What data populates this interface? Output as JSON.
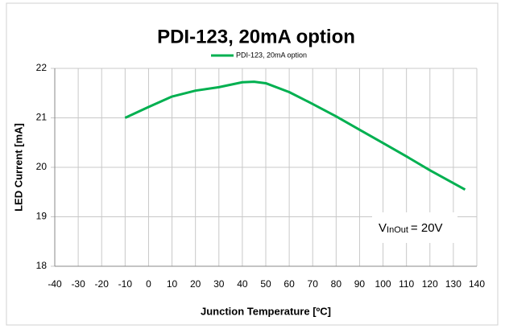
{
  "chart_data": {
    "type": "line",
    "title": "PDI-123, 20mA option",
    "xlabel": "Junction Temperature [ºC]",
    "ylabel": "LED Current [mA]",
    "x": [
      -10,
      0,
      10,
      20,
      30,
      40,
      45,
      50,
      60,
      70,
      80,
      90,
      100,
      110,
      120,
      135
    ],
    "series": [
      {
        "name": "PDI-123, 20mA option",
        "color": "#00b050",
        "values": [
          21.0,
          21.22,
          21.43,
          21.55,
          21.62,
          21.72,
          21.73,
          21.7,
          21.52,
          21.28,
          21.03,
          20.76,
          20.49,
          20.22,
          19.94,
          19.55
        ]
      }
    ],
    "xlim": [
      -40,
      140
    ],
    "xticks": [
      -40,
      -30,
      -20,
      -10,
      0,
      10,
      20,
      30,
      40,
      50,
      60,
      70,
      80,
      90,
      100,
      110,
      120,
      130,
      140
    ],
    "ylim": [
      18,
      22
    ],
    "yticks": [
      18,
      19,
      20,
      21,
      22
    ],
    "grid": true,
    "legend": "top",
    "annotation": {
      "symbol": "V",
      "subscript": "InOut",
      "text": "= 20V"
    }
  }
}
